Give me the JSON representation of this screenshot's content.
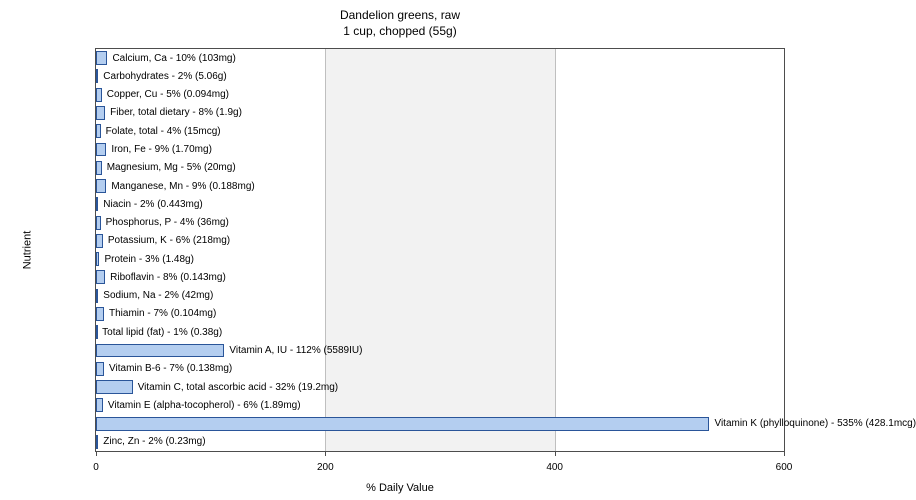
{
  "chart": {
    "type": "bar-horizontal",
    "title_line1": "Dandelion greens, raw",
    "title_line2": "1 cup, chopped (55g)",
    "xlabel": "% Daily Value",
    "ylabel": "Nutrient",
    "xlim": [
      0,
      600
    ],
    "xticks": [
      0,
      200,
      400,
      600
    ],
    "bar_color": "#b4cef0",
    "bar_border": "#2a5599",
    "grid_color": "#bfbfbf",
    "alt_bg_color": "#f2f2f2",
    "plot_border": "#4d4d4d",
    "title_fontsize": 12,
    "axis_fontsize": 11,
    "label_fontsize": 10,
    "nutrients": [
      {
        "label": "Calcium, Ca - 10% (103mg)",
        "value": 10
      },
      {
        "label": "Carbohydrates - 2% (5.06g)",
        "value": 2
      },
      {
        "label": "Copper, Cu - 5% (0.094mg)",
        "value": 5
      },
      {
        "label": "Fiber, total dietary - 8% (1.9g)",
        "value": 8
      },
      {
        "label": "Folate, total - 4% (15mcg)",
        "value": 4
      },
      {
        "label": "Iron, Fe - 9% (1.70mg)",
        "value": 9
      },
      {
        "label": "Magnesium, Mg - 5% (20mg)",
        "value": 5
      },
      {
        "label": "Manganese, Mn - 9% (0.188mg)",
        "value": 9
      },
      {
        "label": "Niacin - 2% (0.443mg)",
        "value": 2
      },
      {
        "label": "Phosphorus, P - 4% (36mg)",
        "value": 4
      },
      {
        "label": "Potassium, K - 6% (218mg)",
        "value": 6
      },
      {
        "label": "Protein - 3% (1.48g)",
        "value": 3
      },
      {
        "label": "Riboflavin - 8% (0.143mg)",
        "value": 8
      },
      {
        "label": "Sodium, Na - 2% (42mg)",
        "value": 2
      },
      {
        "label": "Thiamin - 7% (0.104mg)",
        "value": 7
      },
      {
        "label": "Total lipid (fat) - 1% (0.38g)",
        "value": 1
      },
      {
        "label": "Vitamin A, IU - 112% (5589IU)",
        "value": 112
      },
      {
        "label": "Vitamin B-6 - 7% (0.138mg)",
        "value": 7
      },
      {
        "label": "Vitamin C, total ascorbic acid - 32% (19.2mg)",
        "value": 32
      },
      {
        "label": "Vitamin E (alpha-tocopherol) - 6% (1.89mg)",
        "value": 6
      },
      {
        "label": "Vitamin K (phylloquinone) - 535% (428.1mcg)",
        "value": 535
      },
      {
        "label": "Zinc, Zn - 2% (0.23mg)",
        "value": 2
      }
    ]
  }
}
